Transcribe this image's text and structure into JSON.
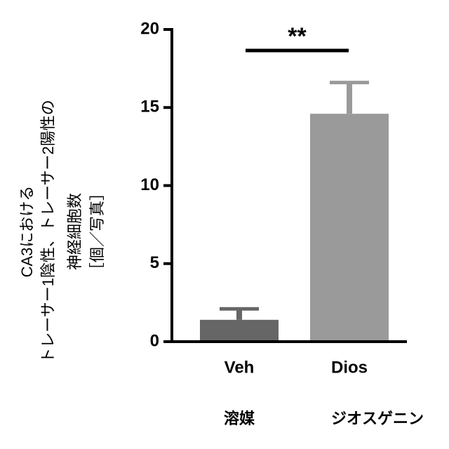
{
  "chart_data": {
    "type": "bar",
    "y_label": [
      "CA3における",
      "トレーサー1陰性、トレーサー2陽性の",
      "神経細胞数",
      "［個／写真］"
    ],
    "categories": [
      "Veh",
      "Dios"
    ],
    "sublabels": [
      "溶媒",
      "ジオスゲニン"
    ],
    "values": [
      1.4,
      14.6
    ],
    "errors": [
      0.7,
      2.0
    ],
    "colors": [
      "#666666",
      "#9a9a9a"
    ],
    "ylim": [
      0,
      20
    ],
    "yticks": [
      0,
      5,
      10,
      15,
      20
    ],
    "significance": {
      "label": "**",
      "between": [
        0,
        1
      ]
    }
  }
}
